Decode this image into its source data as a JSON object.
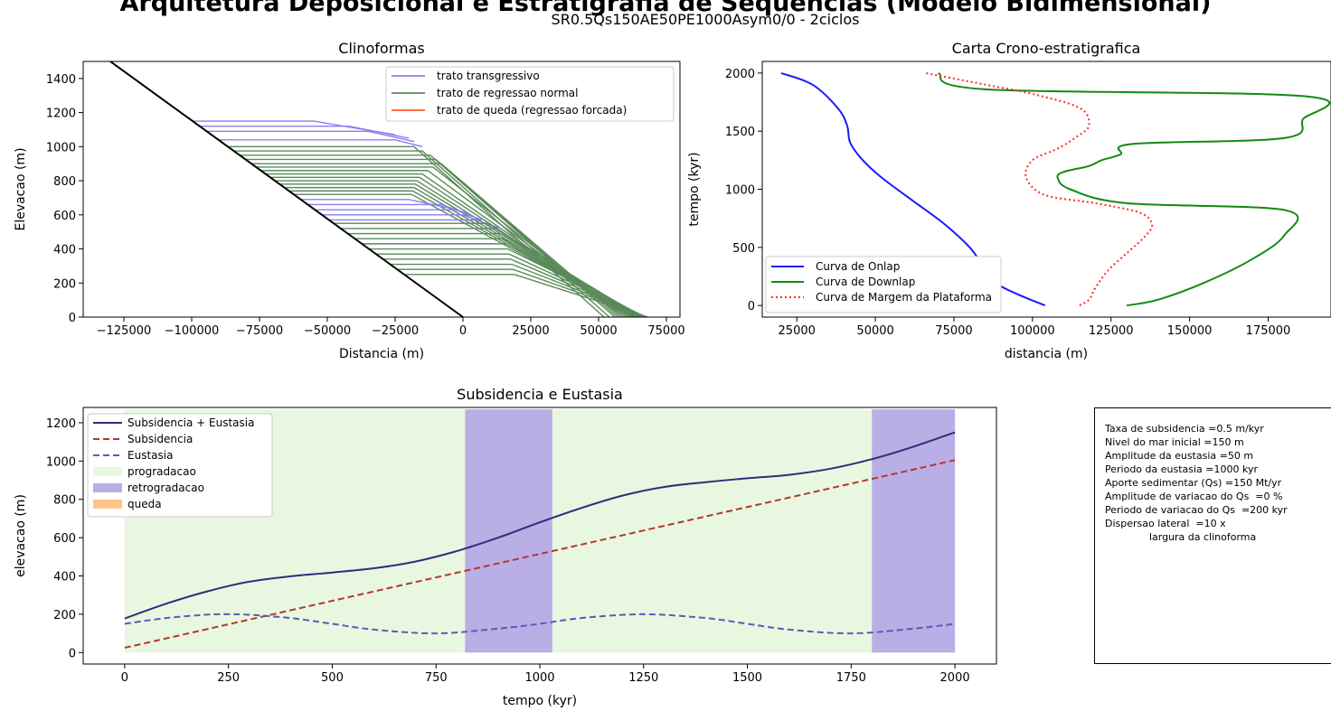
{
  "figure": {
    "title": "Arquitetura Deposicional e Estratigrafia de Sequencias (Modelo Bidimensional)",
    "subtitle": "SR0.5Qs150AE50PE1000Asym0/0 - 2ciclos"
  },
  "colors": {
    "transgressive": "#8b7ff0",
    "normal_regression": "#5a8a5a",
    "forced_regression": "#ff5a1f",
    "basement": "#000000",
    "onlap": "#1a1aff",
    "downlap": "#138a13",
    "margin": "#ff2a2a",
    "subs_eust": "#2b2f7a",
    "subsidence": "#b8352d",
    "eustasy": "#5a5ab8",
    "progradation": "#e8f8e0",
    "retrogradation": "#b9aee6",
    "fall": "#ffc58a"
  },
  "chart_data": [
    {
      "id": "clinoforms",
      "type": "line",
      "title": "Clinoformas",
      "xlabel": "Distancia (m)",
      "ylabel": "Elevacao (m)",
      "xlim": [
        -140000,
        80000
      ],
      "ylim": [
        0,
        1500
      ],
      "xticks": [
        -125000,
        -100000,
        -75000,
        -50000,
        -25000,
        0,
        25000,
        50000,
        75000
      ],
      "xtick_labels": [
        "−125000",
        "−100000",
        "−75000",
        "−50000",
        "−25000",
        "0",
        "25000",
        "50000",
        "75000"
      ],
      "yticks": [
        0,
        200,
        400,
        600,
        800,
        1000,
        1200,
        1400
      ],
      "legend_position": "top-right",
      "legend": [
        "trato transgressivo",
        "trato de regressao normal",
        "trato de queda (regressao forcada)"
      ],
      "basement": {
        "x": [
          -130000,
          0
        ],
        "y": [
          1500,
          0
        ]
      },
      "clinoforms": [
        {
          "tract": "transgressive",
          "top": 1150,
          "break_x": -55000,
          "toe_x": -25000,
          "toe_y": 1070
        },
        {
          "tract": "transgressive",
          "top": 1120,
          "break_x": -42000,
          "toe_x": -20000,
          "toe_y": 1050
        },
        {
          "tract": "transgressive",
          "top": 1090,
          "break_x": -35000,
          "toe_x": -18000,
          "toe_y": 1030
        },
        {
          "tract": "transgressive",
          "top": 1040,
          "break_x": -25000,
          "toe_x": -15000,
          "toe_y": 1000
        },
        {
          "tract": "normal",
          "top": 1000,
          "break_x": -18000,
          "toe_x": 52000,
          "toe_y": 0
        },
        {
          "tract": "normal",
          "top": 975,
          "break_x": -15000,
          "toe_x": 54000,
          "toe_y": 0
        },
        {
          "tract": "normal",
          "top": 950,
          "break_x": -12000,
          "toe_x": 56000,
          "toe_y": 0
        },
        {
          "tract": "normal",
          "top": 925,
          "break_x": -10000,
          "toe_x": 57000,
          "toe_y": 0
        },
        {
          "tract": "normal",
          "top": 900,
          "break_x": -8000,
          "toe_x": 58000,
          "toe_y": 0
        },
        {
          "tract": "normal",
          "top": 880,
          "break_x": -11000,
          "toe_x": 59000,
          "toe_y": 0
        },
        {
          "tract": "normal",
          "top": 860,
          "break_x": -13000,
          "toe_x": 60000,
          "toe_y": 0
        },
        {
          "tract": "normal",
          "top": 840,
          "break_x": -15000,
          "toe_x": 61000,
          "toe_y": 0
        },
        {
          "tract": "normal",
          "top": 820,
          "break_x": -16000,
          "toe_x": 62000,
          "toe_y": 0
        },
        {
          "tract": "normal",
          "top": 800,
          "break_x": -17000,
          "toe_x": 62500,
          "toe_y": 0
        },
        {
          "tract": "normal",
          "top": 780,
          "break_x": -17500,
          "toe_x": 63000,
          "toe_y": 0
        },
        {
          "tract": "normal",
          "top": 760,
          "break_x": -18000,
          "toe_x": 63500,
          "toe_y": 0
        },
        {
          "tract": "normal",
          "top": 740,
          "break_x": -18500,
          "toe_x": 64000,
          "toe_y": 0
        },
        {
          "tract": "normal",
          "top": 720,
          "break_x": -19000,
          "toe_x": 64500,
          "toe_y": 0
        },
        {
          "tract": "transgressive",
          "top": 690,
          "break_x": -20000,
          "toe_x": -5000,
          "toe_y": 640
        },
        {
          "tract": "transgressive",
          "top": 660,
          "break_x": -8000,
          "toe_x": 3000,
          "toe_y": 600
        },
        {
          "tract": "transgressive",
          "top": 630,
          "break_x": -3000,
          "toe_x": 7000,
          "toe_y": 570
        },
        {
          "tract": "transgressive",
          "top": 600,
          "break_x": 0,
          "toe_x": 10000,
          "toe_y": 540
        },
        {
          "tract": "transgressive",
          "top": 570,
          "break_x": 5000,
          "toe_x": 14000,
          "toe_y": 520
        },
        {
          "tract": "normal",
          "top": 550,
          "break_x": 9000,
          "toe_x": 65000,
          "toe_y": 0
        },
        {
          "tract": "normal",
          "top": 520,
          "break_x": 12000,
          "toe_x": 65500,
          "toe_y": 0
        },
        {
          "tract": "normal",
          "top": 490,
          "break_x": 14000,
          "toe_x": 66000,
          "toe_y": 0
        },
        {
          "tract": "normal",
          "top": 460,
          "break_x": 15000,
          "toe_x": 66500,
          "toe_y": 0
        },
        {
          "tract": "normal",
          "top": 430,
          "break_x": 16000,
          "toe_x": 67000,
          "toe_y": 0
        },
        {
          "tract": "normal",
          "top": 400,
          "break_x": 16500,
          "toe_x": 67300,
          "toe_y": 0
        },
        {
          "tract": "normal",
          "top": 370,
          "break_x": 17000,
          "toe_x": 67500,
          "toe_y": 0
        },
        {
          "tract": "normal",
          "top": 340,
          "break_x": 17500,
          "toe_x": 67700,
          "toe_y": 0
        },
        {
          "tract": "normal",
          "top": 310,
          "break_x": 18000,
          "toe_x": 67900,
          "toe_y": 0
        },
        {
          "tract": "normal",
          "top": 280,
          "break_x": 18500,
          "toe_x": 68000,
          "toe_y": 0
        },
        {
          "tract": "normal",
          "top": 250,
          "break_x": 19000,
          "toe_x": 68000,
          "toe_y": 0
        }
      ]
    },
    {
      "id": "chrono",
      "type": "line",
      "title": "Carta Crono-estratigrafica",
      "xlabel": "distancia (m)",
      "ylabel": "tempo (kyr)",
      "xlim": [
        14000,
        195000
      ],
      "ylim": [
        -100,
        2100
      ],
      "xticks": [
        25000,
        50000,
        75000,
        100000,
        125000,
        150000,
        175000
      ],
      "yticks": [
        0,
        500,
        1000,
        1500,
        2000
      ],
      "legend_position": "lower-left",
      "series": [
        {
          "name": "Curva de Onlap",
          "color_key": "onlap",
          "style": "solid",
          "x": [
            104000,
            95000,
            88000,
            84000,
            80000,
            72000,
            62000,
            52000,
            46000,
            42000,
            41000,
            38000,
            30000,
            20000
          ],
          "y": [
            0,
            100,
            200,
            350,
            500,
            700,
            900,
            1100,
            1250,
            1400,
            1550,
            1700,
            1900,
            2000
          ]
        },
        {
          "name": "Curva de Downlap",
          "color_key": "downlap",
          "style": "solid",
          "x": [
            130000,
            140000,
            155000,
            170000,
            180000,
            180500,
            130000,
            112000,
            108000,
            110000,
            118000,
            122000,
            128000,
            132000,
            180000,
            186000,
            187000,
            85000,
            70000
          ],
          "y": [
            0,
            50,
            200,
            400,
            600,
            820,
            880,
            1000,
            1100,
            1150,
            1200,
            1250,
            1300,
            1390,
            1440,
            1600,
            1800,
            1860,
            2000
          ]
        },
        {
          "name": "Curva de Margem da Plataforma",
          "color_key": "margin",
          "style": "dotted",
          "x": [
            115000,
            118000,
            120000,
            124000,
            130000,
            136000,
            138000,
            134000,
            120000,
            104000,
            98000,
            100000,
            108000,
            114000,
            118000,
            115000,
            100000,
            85000,
            66000
          ],
          "y": [
            0,
            50,
            150,
            300,
            450,
            600,
            700,
            800,
            880,
            950,
            1100,
            1250,
            1350,
            1450,
            1550,
            1700,
            1820,
            1900,
            2000
          ]
        }
      ]
    },
    {
      "id": "subsidence",
      "type": "line",
      "title": "Subsidencia e Eustasia",
      "xlabel": "tempo (kyr)",
      "ylabel": "elevacao (m)",
      "xlim": [
        -100,
        2100
      ],
      "ylim": [
        -60,
        1280
      ],
      "xticks": [
        0,
        250,
        500,
        750,
        1000,
        1250,
        1500,
        1750,
        2000
      ],
      "yticks": [
        0,
        200,
        400,
        600,
        800,
        1000,
        1200
      ],
      "legend_position": "top-left",
      "bands": [
        {
          "name": "progradacao",
          "color_key": "progradation",
          "x0": 0,
          "x1": 2000,
          "y0": 0,
          "y1": 1270
        },
        {
          "name": "retrogradacao",
          "color_key": "retrogradation",
          "x0": 820,
          "x1": 1030,
          "y0": 0,
          "y1": 1270
        },
        {
          "name": "retrogradacao",
          "color_key": "retrogradation",
          "x0": 1800,
          "x1": 2000,
          "y0": 0,
          "y1": 1270
        }
      ],
      "legend": [
        "Subsidencia + Eustasia",
        "Subsidencia",
        "Eustasia",
        "progradacao",
        "retrogradacao",
        "queda"
      ],
      "series": [
        {
          "name": "Subsidencia + Eustasia",
          "color_key": "subs_eust",
          "style": "solid",
          "x": [
            0,
            100,
            200,
            300,
            400,
            500,
            600,
            700,
            800,
            900,
            1000,
            1100,
            1200,
            1300,
            1400,
            1500,
            1600,
            1700,
            1800,
            1900,
            2000
          ],
          "y": [
            178,
            255,
            320,
            370,
            398,
            418,
            440,
            475,
            530,
            600,
            680,
            755,
            820,
            865,
            890,
            910,
            928,
            960,
            1010,
            1075,
            1150
          ]
        },
        {
          "name": "Subsidencia",
          "color_key": "subsidence",
          "style": "dashed",
          "x": [
            0,
            2000
          ],
          "y": [
            25,
            1005
          ]
        },
        {
          "name": "Eustasia",
          "color_key": "eustasy",
          "style": "dashed",
          "x": [
            0,
            100,
            200,
            250,
            300,
            400,
            500,
            600,
            750,
            900,
            1000,
            1100,
            1250,
            1400,
            1500,
            1600,
            1750,
            1900,
            2000
          ],
          "y": [
            150,
            180,
            198,
            200,
            197,
            180,
            150,
            120,
            100,
            125,
            150,
            180,
            200,
            180,
            150,
            120,
            100,
            125,
            150
          ]
        }
      ]
    }
  ],
  "parameters": [
    "Taxa de subsidencia =0.5 m/kyr",
    "Nivel do mar inicial =150 m",
    "Amplitude da eustasia =50 m",
    "Periodo da eustasia =1000 kyr",
    "Aporte sedimentar (Qs) =150 Mt/yr",
    "Amplitude de variacao do Qs  =0 %",
    "Periodo de variacao do Qs  =200 kyr",
    "Dispersao lateral  =10 x",
    "              largura da clinoforma"
  ]
}
